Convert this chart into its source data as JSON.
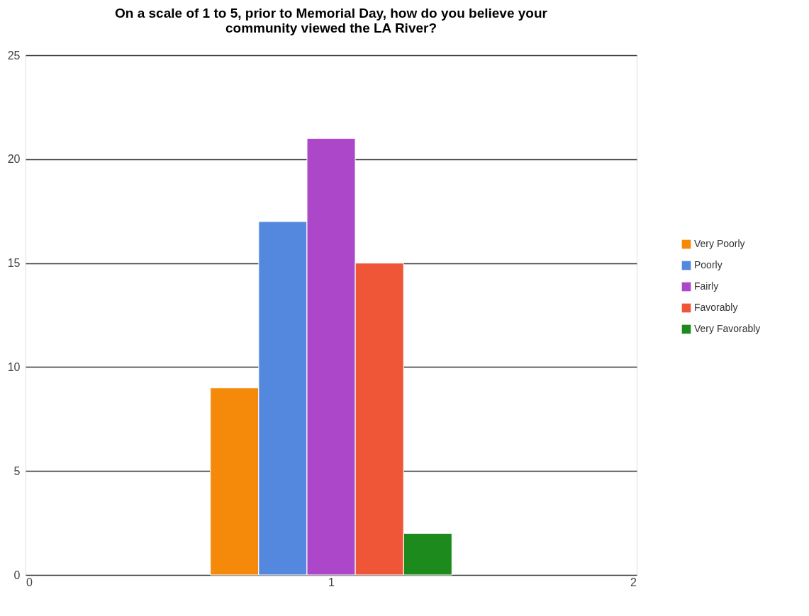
{
  "chart_data": {
    "type": "bar",
    "title": "On a scale of 1 to 5, prior to Memorial Day, how do you believe your\ncommunity viewed the LA River?",
    "xlim": [
      0,
      2
    ],
    "xticks": [
      0,
      1,
      2
    ],
    "ylim": [
      0,
      25
    ],
    "yticks": [
      0,
      5,
      10,
      15,
      20,
      25
    ],
    "grid": "y",
    "legend": "right",
    "series": [
      {
        "name": "Very Poorly",
        "color": "#f58a0a",
        "x": [
          0.68
        ],
        "values": [
          9
        ]
      },
      {
        "name": "Poorly",
        "color": "#5388de",
        "x": [
          0.84
        ],
        "values": [
          17
        ]
      },
      {
        "name": "Fairly",
        "color": "#ab47c8",
        "x": [
          1.0
        ],
        "values": [
          21
        ]
      },
      {
        "name": "Favorably",
        "color": "#ef5638",
        "x": [
          1.16
        ],
        "values": [
          15
        ]
      },
      {
        "name": "Very Favorably",
        "color": "#1c8a1c",
        "x": [
          1.32
        ],
        "values": [
          2
        ]
      }
    ]
  }
}
